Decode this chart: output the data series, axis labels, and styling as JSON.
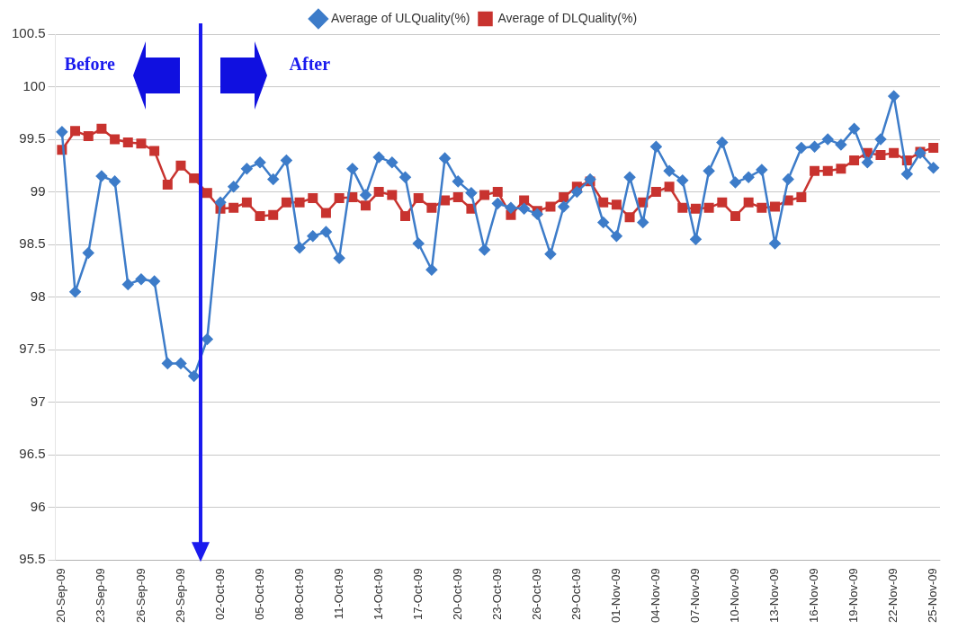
{
  "chart_data": {
    "type": "line",
    "categories": [
      "20-Sep-09",
      null,
      null,
      "23-Sep-09",
      null,
      null,
      "26-Sep-09",
      null,
      null,
      "29-Sep-09",
      null,
      null,
      "02-Oct-09",
      null,
      null,
      "05-Oct-09",
      null,
      null,
      "08-Oct-09",
      null,
      null,
      "11-Oct-09",
      null,
      null,
      "14-Oct-09",
      null,
      null,
      "17-Oct-09",
      null,
      null,
      "20-Oct-09",
      null,
      null,
      "23-Oct-09",
      null,
      null,
      "26-Oct-09",
      null,
      null,
      "29-Oct-09",
      null,
      null,
      "01-Nov-09",
      null,
      null,
      "04-Nov-09",
      null,
      null,
      "07-Nov-09",
      null,
      null,
      "10-Nov-09",
      null,
      null,
      "13-Nov-09",
      null,
      null,
      "16-Nov-09",
      null,
      null,
      "19-Nov-09",
      null,
      null,
      "22-Nov-09",
      null,
      null,
      "25-Nov-09"
    ],
    "series": [
      {
        "name": "Average of ULQuality(%)",
        "color": "#3d7cc9",
        "marker": "diamond",
        "values": [
          99.57,
          98.05,
          98.42,
          99.15,
          99.1,
          98.12,
          98.17,
          98.15,
          97.37,
          97.37,
          97.25,
          97.6,
          98.9,
          99.05,
          99.22,
          99.28,
          99.12,
          99.3,
          98.47,
          98.58,
          98.62,
          98.37,
          99.22,
          98.97,
          99.33,
          99.28,
          99.14,
          98.51,
          98.26,
          99.32,
          99.1,
          98.99,
          98.45,
          98.89,
          98.85,
          98.84,
          98.79,
          98.41,
          98.86,
          99.0,
          99.12,
          98.71,
          98.58,
          99.14,
          98.71,
          99.43,
          99.2,
          99.11,
          98.55,
          99.2,
          99.47,
          99.09,
          99.14,
          99.21,
          98.51,
          99.12,
          99.42,
          99.43,
          99.5,
          99.45,
          99.6,
          99.28,
          99.5,
          99.91,
          99.17,
          99.37,
          99.23
        ]
      },
      {
        "name": "Average of DLQuality(%)",
        "color": "#c8332f",
        "marker": "square",
        "values": [
          99.4,
          99.58,
          99.53,
          99.6,
          99.5,
          99.47,
          99.46,
          99.39,
          99.07,
          99.25,
          99.13,
          98.99,
          98.84,
          98.85,
          98.9,
          98.77,
          98.78,
          98.9,
          98.9,
          98.94,
          98.8,
          98.94,
          98.95,
          98.87,
          99.0,
          98.97,
          98.77,
          98.94,
          98.85,
          98.92,
          98.95,
          98.84,
          98.97,
          99.0,
          98.78,
          98.92,
          98.82,
          98.86,
          98.95,
          99.05,
          99.1,
          98.9,
          98.88,
          98.76,
          98.9,
          99.0,
          99.05,
          98.85,
          98.84,
          98.85,
          98.9,
          98.77,
          98.9,
          98.85,
          98.86,
          98.92,
          98.95,
          99.2,
          99.2,
          99.22,
          99.3,
          99.37,
          99.35,
          99.37,
          99.3,
          99.38,
          99.42
        ]
      }
    ],
    "ylim": [
      95.5,
      100.5
    ],
    "yticks": [
      95.5,
      96,
      96.5,
      97,
      97.5,
      98,
      98.5,
      99,
      99.5,
      100,
      100.5
    ],
    "grid": "y",
    "legend": "top",
    "annotations": [
      "Before",
      "After"
    ]
  }
}
